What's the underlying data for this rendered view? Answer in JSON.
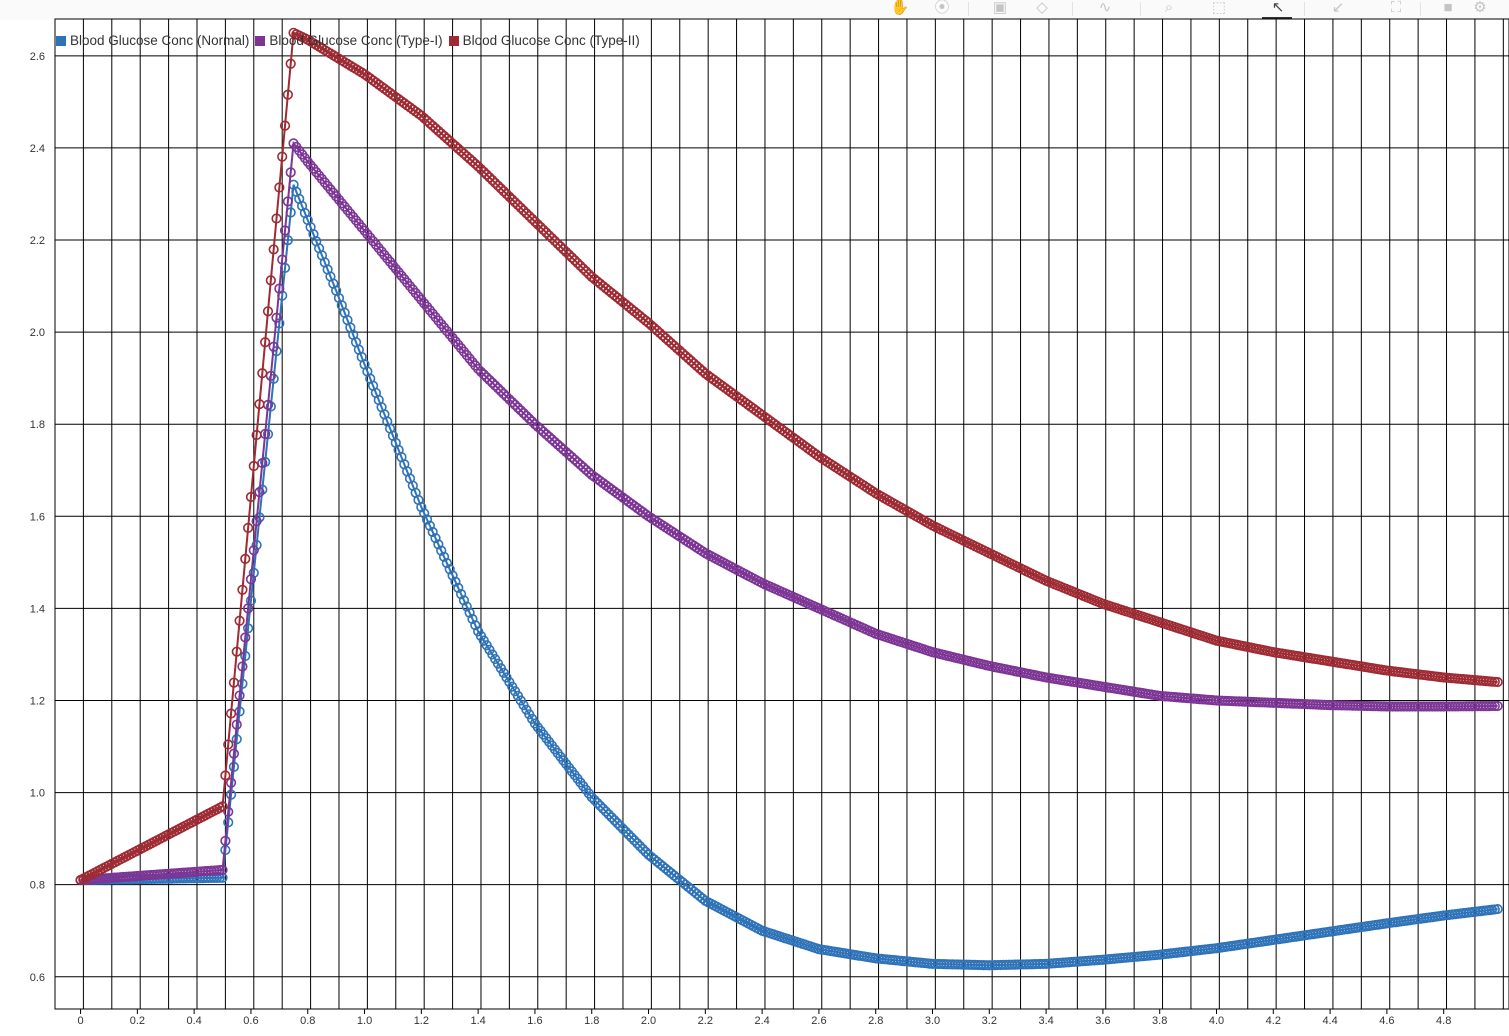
{
  "toolbar": {
    "icons": [
      "hand-icon",
      "lasso-icon",
      "layout-icon",
      "eraser-icon",
      "curve-icon",
      "zoom-icon",
      "box-zoom-icon",
      "pointer-icon",
      "shrink-icon",
      "expand-icon",
      "camera-icon",
      "gear-icon"
    ]
  },
  "chart_data": {
    "type": "line",
    "title": "",
    "xlabel": "",
    "ylabel": "",
    "xlim": [
      -0.09,
      5.03
    ],
    "ylim": [
      0.53,
      2.68
    ],
    "x_ticks": [
      0,
      0.2,
      0.4,
      0.6,
      0.8,
      1.0,
      1.2,
      1.4,
      1.6,
      1.8,
      2.0,
      2.2,
      2.4,
      2.6,
      2.8,
      3.0,
      3.2,
      3.4,
      3.6,
      3.8,
      4.0,
      4.2,
      4.4,
      4.6,
      4.8
    ],
    "x_tick_labels": [
      "0",
      "0.2",
      "0.4",
      "0.6",
      "0.8",
      "1.0",
      "1.2",
      "1.4",
      "1.6",
      "1.8",
      "2.0",
      "2.2",
      "2.4",
      "2.6",
      "2.8",
      "3.0",
      "3.2",
      "3.4",
      "3.6",
      "3.8",
      "4.0",
      "4.2",
      "4.4",
      "4.6",
      "4.8"
    ],
    "y_ticks": [
      0.6,
      0.8,
      1.0,
      1.2,
      1.4,
      1.6,
      1.8,
      2.0,
      2.2,
      2.4,
      2.6
    ],
    "y_tick_labels": [
      "0.6",
      "0.8",
      "1.0",
      "1.2",
      "1.4",
      "1.6",
      "1.8",
      "2.0",
      "2.2",
      "2.4",
      "2.6"
    ],
    "grid": true,
    "legend_position": "top-left",
    "marker": "open-circle",
    "marker_step": 0.01,
    "x_end": 4.99,
    "series": [
      {
        "name": "Blood Glucose Conc (Normal)",
        "color": "#2e72b8",
        "points": [
          [
            0,
            0.81
          ],
          [
            0.5,
            0.815
          ],
          [
            0.75,
            2.32
          ],
          [
            0.9,
            2.09
          ],
          [
            1.0,
            1.93
          ],
          [
            1.2,
            1.62
          ],
          [
            1.4,
            1.35
          ],
          [
            1.6,
            1.15
          ],
          [
            1.8,
            0.99
          ],
          [
            2.0,
            0.865
          ],
          [
            2.2,
            0.765
          ],
          [
            2.4,
            0.7
          ],
          [
            2.6,
            0.66
          ],
          [
            2.8,
            0.64
          ],
          [
            3.0,
            0.628
          ],
          [
            3.2,
            0.625
          ],
          [
            3.4,
            0.628
          ],
          [
            3.6,
            0.637
          ],
          [
            3.8,
            0.648
          ],
          [
            4.0,
            0.662
          ],
          [
            4.2,
            0.68
          ],
          [
            4.4,
            0.698
          ],
          [
            4.6,
            0.716
          ],
          [
            4.8,
            0.733
          ],
          [
            4.99,
            0.747
          ]
        ]
      },
      {
        "name": "Blood Glucose Conc (Type-I)",
        "color": "#7d3595",
        "points": [
          [
            0,
            0.81
          ],
          [
            0.5,
            0.832
          ],
          [
            0.75,
            2.41
          ],
          [
            0.8,
            2.37
          ],
          [
            1.0,
            2.22
          ],
          [
            1.2,
            2.07
          ],
          [
            1.4,
            1.92
          ],
          [
            1.6,
            1.8
          ],
          [
            1.8,
            1.69
          ],
          [
            2.0,
            1.6
          ],
          [
            2.2,
            1.52
          ],
          [
            2.4,
            1.455
          ],
          [
            2.6,
            1.4
          ],
          [
            2.8,
            1.345
          ],
          [
            3.0,
            1.305
          ],
          [
            3.2,
            1.275
          ],
          [
            3.4,
            1.25
          ],
          [
            3.6,
            1.23
          ],
          [
            3.8,
            1.21
          ],
          [
            4.0,
            1.2
          ],
          [
            4.2,
            1.195
          ],
          [
            4.4,
            1.19
          ],
          [
            4.6,
            1.187
          ],
          [
            4.8,
            1.187
          ],
          [
            4.99,
            1.188
          ]
        ]
      },
      {
        "name": "Blood Glucose Conc (Type-II)",
        "color": "#9e2a33",
        "points": [
          [
            0,
            0.81
          ],
          [
            0.5,
            0.97
          ],
          [
            0.75,
            2.65
          ],
          [
            0.8,
            2.635
          ],
          [
            1.0,
            2.56
          ],
          [
            1.2,
            2.47
          ],
          [
            1.4,
            2.36
          ],
          [
            1.6,
            2.24
          ],
          [
            1.8,
            2.12
          ],
          [
            2.0,
            2.02
          ],
          [
            2.2,
            1.91
          ],
          [
            2.4,
            1.82
          ],
          [
            2.6,
            1.73
          ],
          [
            2.8,
            1.65
          ],
          [
            3.0,
            1.58
          ],
          [
            3.2,
            1.52
          ],
          [
            3.4,
            1.46
          ],
          [
            3.6,
            1.41
          ],
          [
            3.8,
            1.37
          ],
          [
            4.0,
            1.33
          ],
          [
            4.2,
            1.305
          ],
          [
            4.4,
            1.285
          ],
          [
            4.6,
            1.265
          ],
          [
            4.8,
            1.25
          ],
          [
            4.99,
            1.24
          ]
        ]
      }
    ]
  }
}
